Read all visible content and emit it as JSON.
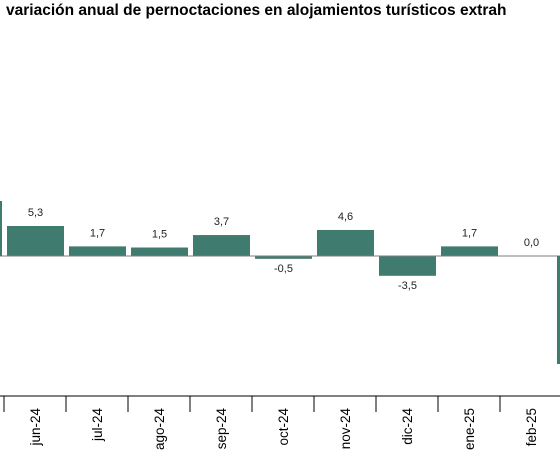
{
  "chart_data": {
    "type": "bar",
    "title": "variación anual de pernoctaciones en alojamientos turísticos extrah",
    "categories": [
      "jun-24",
      "jul-24",
      "ago-24",
      "sep-24",
      "oct-24",
      "nov-24",
      "dic-24",
      "ene-25",
      "feb-25"
    ],
    "values": [
      5.3,
      1.7,
      1.5,
      3.7,
      -0.5,
      4.6,
      -3.5,
      1.7,
      0.0
    ],
    "value_labels": [
      "5,3",
      "1,7",
      "1,5",
      "3,7",
      "-0,5",
      "4,6",
      "-3,5",
      "1,7",
      "0,0"
    ],
    "xlabel": "",
    "ylabel": "",
    "bar_color": "#3f7b6f",
    "zero_line_color": "#7f7f7f",
    "grid": false,
    "legend": "none"
  }
}
